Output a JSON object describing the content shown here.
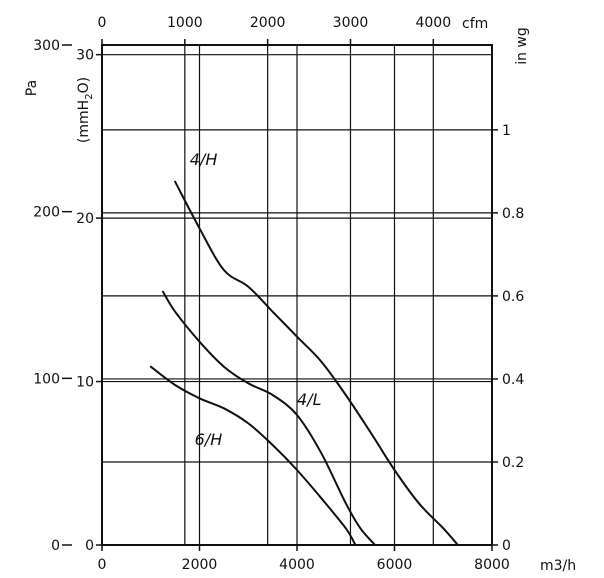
{
  "chart_data": {
    "type": "line",
    "title": "",
    "grid": true,
    "x_axis": {
      "unit": "m3/h",
      "range": [
        0,
        8000
      ],
      "ticks": [
        "0",
        "2000",
        "4000",
        "6000",
        "8000"
      ],
      "tick_values": [
        0,
        2000,
        4000,
        6000,
        8000
      ]
    },
    "x2_axis": {
      "unit": "cfm",
      "ticks": [
        "0",
        "1000",
        "2000",
        "3000",
        "4000"
      ],
      "tick_values": [
        0,
        1000,
        2000,
        3000,
        4000
      ]
    },
    "y_axis": {
      "unit": "Pa",
      "range": [
        0,
        300
      ],
      "ticks": [
        "0",
        "100",
        "200",
        "300"
      ],
      "tick_values": [
        0,
        100,
        200,
        300
      ]
    },
    "y2_axis": {
      "unit": "(mmH2O)",
      "unit_main": "(mmH",
      "unit_sub": "2",
      "unit_end": "O)",
      "ticks": [
        "0",
        "10",
        "20",
        "30"
      ],
      "tick_values": [
        0,
        10,
        20,
        30
      ]
    },
    "y3_axis": {
      "unit": "in wg",
      "ticks": [
        "0",
        "0.2",
        "0.4",
        "0.6",
        "0.8",
        "1"
      ],
      "tick_values": [
        0,
        0.2,
        0.4,
        0.6,
        0.8,
        1.0
      ]
    },
    "series": [
      {
        "name": "4/H",
        "points": [
          [
            1500,
            218
          ],
          [
            2000,
            190
          ],
          [
            2500,
            165
          ],
          [
            3000,
            155
          ],
          [
            3500,
            140
          ],
          [
            4000,
            125
          ],
          [
            4500,
            110
          ],
          [
            5000,
            90
          ],
          [
            5500,
            68
          ],
          [
            6000,
            45
          ],
          [
            6500,
            25
          ],
          [
            7000,
            10
          ],
          [
            7300,
            0
          ]
        ]
      },
      {
        "name": "4/L",
        "points": [
          [
            1250,
            152
          ],
          [
            1500,
            140
          ],
          [
            2000,
            122
          ],
          [
            2500,
            107
          ],
          [
            3000,
            97
          ],
          [
            3500,
            90
          ],
          [
            4000,
            78
          ],
          [
            4500,
            55
          ],
          [
            5000,
            25
          ],
          [
            5300,
            10
          ],
          [
            5600,
            0
          ]
        ]
      },
      {
        "name": "6/H",
        "points": [
          [
            1000,
            107
          ],
          [
            1500,
            96
          ],
          [
            2000,
            88
          ],
          [
            2500,
            82
          ],
          [
            3000,
            73
          ],
          [
            3500,
            60
          ],
          [
            4000,
            45
          ],
          [
            4500,
            28
          ],
          [
            5000,
            10
          ],
          [
            5200,
            0
          ]
        ]
      }
    ]
  }
}
